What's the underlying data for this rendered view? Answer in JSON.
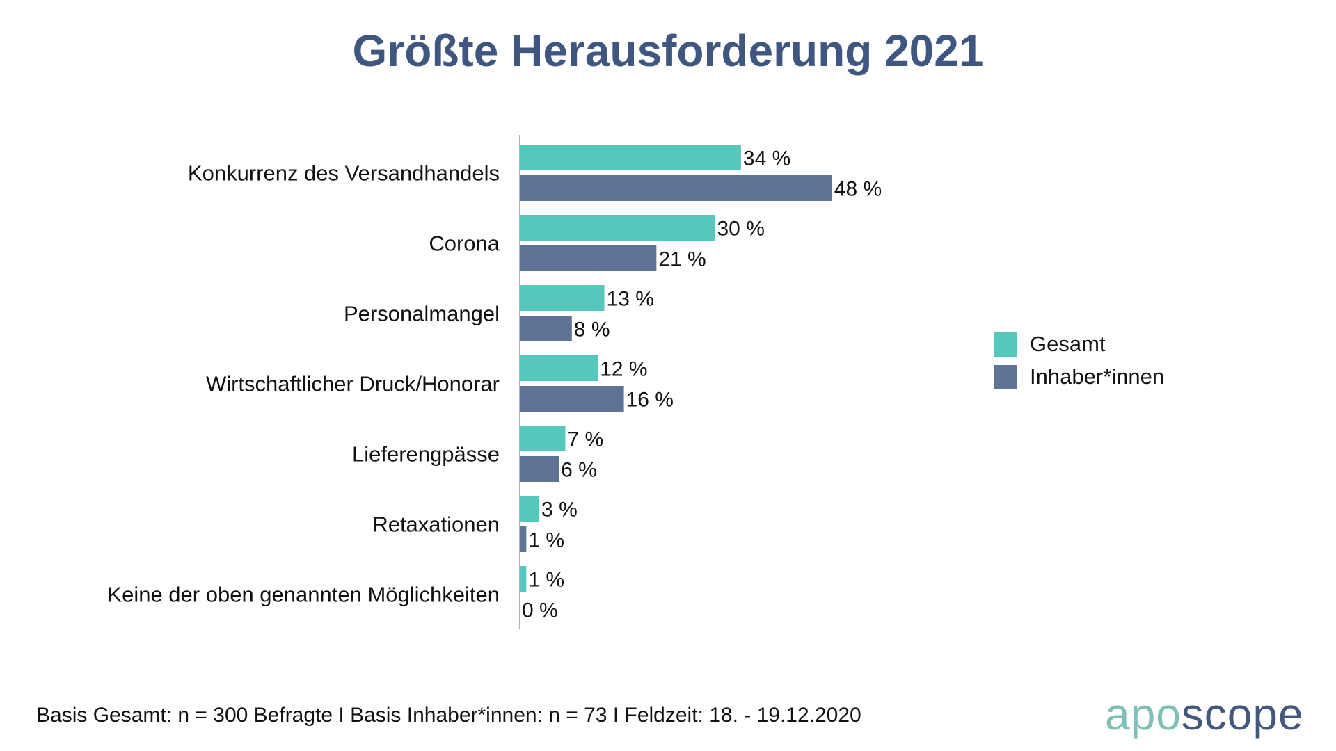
{
  "chart_data": {
    "type": "bar",
    "orientation": "horizontal",
    "title": "Größte Herausforderung 2021",
    "categories": [
      "Konkurrenz des Versandhandels",
      "Corona",
      "Personalmangel",
      "Wirtschaftlicher Druck/Honorar",
      "Lieferengpässe",
      "Retaxationen",
      "Keine der oben genannten Möglichkeiten"
    ],
    "series": [
      {
        "name": "Gesamt",
        "color": "#56c8bb",
        "values": [
          34,
          30,
          13,
          12,
          7,
          3,
          1
        ]
      },
      {
        "name": "Inhaber*innen",
        "color": "#5f7396",
        "values": [
          48,
          21,
          8,
          16,
          6,
          1,
          0
        ]
      }
    ],
    "value_suffix": " %",
    "xlabel": "",
    "ylabel": "",
    "xlim": [
      0,
      100
    ],
    "grid": false,
    "legend_position": "right"
  },
  "footer": "Basis Gesamt: n = 300 Befragte I Basis Inhaber*innen: n = 73 I Feldzeit: 18. - 19.12.2020",
  "logo": {
    "part1": "apo",
    "part2": "scope",
    "color1": "#7fc0b6",
    "color2": "#44577c"
  }
}
